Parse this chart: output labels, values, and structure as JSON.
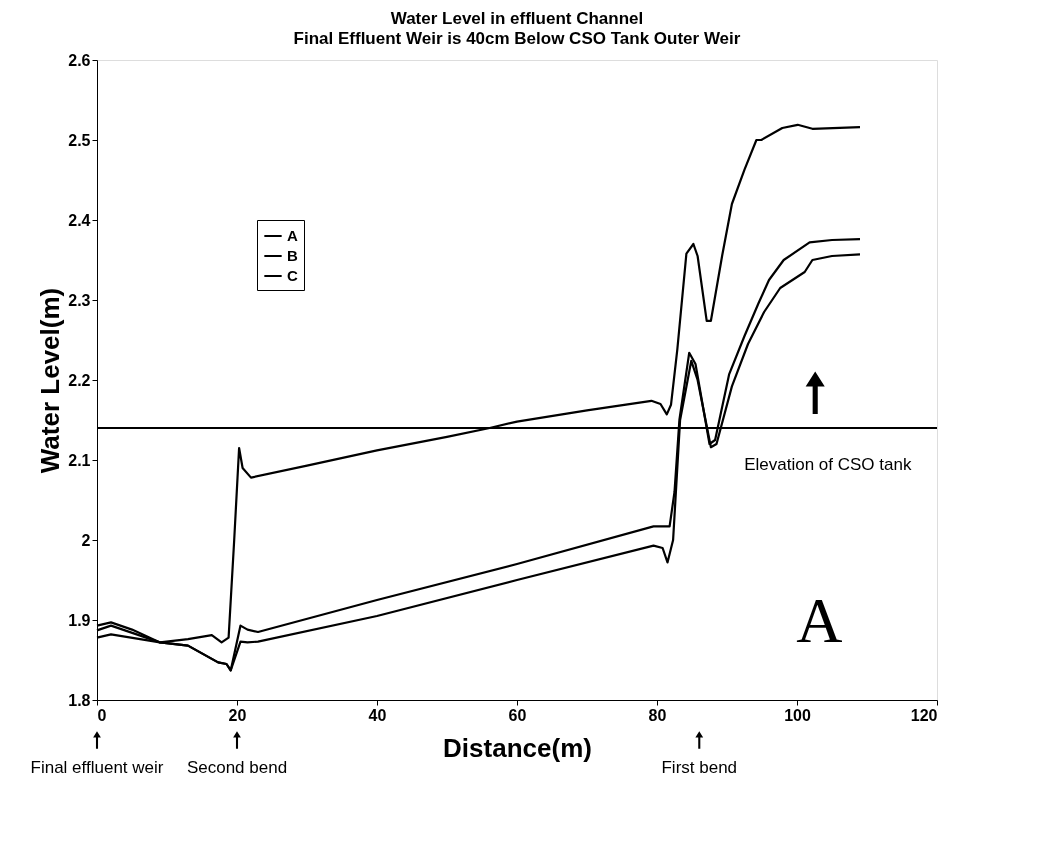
{
  "chart_data": {
    "type": "line",
    "title": "Water Level in effluent Channel",
    "subtitle": "Final Effluent Weir is 40cm Below CSO Tank Outer Weir",
    "xlabel": "Distance(m)",
    "ylabel": "Water Level(m)",
    "series": [
      {
        "name": "A",
        "color": "#000000",
        "x": [
          0,
          2,
          5,
          9,
          13,
          16.4,
          17.8,
          18.8,
          19.6,
          20.3,
          20.8,
          22,
          30,
          40,
          50,
          56.1,
          60,
          70,
          79.2,
          80.5,
          81.4,
          82.0,
          82.9,
          84.2,
          85.2,
          85.8,
          87.1,
          87.7,
          89.3,
          90.7,
          92.5,
          94.2,
          94.9,
          97.9,
          100.1,
          102.2,
          109
        ],
        "values": [
          1.893,
          1.897,
          1.888,
          1.872,
          1.876,
          1.881,
          1.872,
          1.878,
          2.0,
          2.115,
          2.09,
          2.078,
          2.093,
          2.112,
          2.129,
          2.14,
          2.148,
          2.162,
          2.174,
          2.17,
          2.157,
          2.169,
          2.238,
          2.358,
          2.37,
          2.355,
          2.274,
          2.274,
          2.355,
          2.42,
          2.463,
          2.5,
          2.5,
          2.515,
          2.519,
          2.514,
          2.516
        ]
      },
      {
        "name": "B",
        "color": "#000000",
        "x": [
          0,
          2,
          9,
          13,
          17.3,
          18.5,
          19.1,
          20.5,
          21.5,
          23,
          40,
          60,
          79.5,
          81.8,
          82.5,
          83.2,
          84.6,
          85.5,
          87.5,
          88.3,
          90.3,
          92.5,
          94.5,
          96,
          98.1,
          101.8,
          105,
          109
        ],
        "values": [
          1.887,
          1.893,
          1.872,
          1.868,
          1.847,
          1.845,
          1.837,
          1.893,
          1.888,
          1.885,
          1.925,
          1.97,
          2.017,
          2.017,
          2.06,
          2.15,
          2.234,
          2.22,
          2.12,
          2.125,
          2.207,
          2.255,
          2.296,
          2.325,
          2.35,
          2.372,
          2.375,
          2.376
        ]
      },
      {
        "name": "C",
        "color": "#000000",
        "x": [
          0,
          2,
          9,
          13,
          17.3,
          18.5,
          19.1,
          20.5,
          21.5,
          23,
          40,
          60,
          79.5,
          80.8,
          81.5,
          82.3,
          83.3,
          84.9,
          85.8,
          87.7,
          88.5,
          90.7,
          93,
          95.3,
          97.6,
          101.1,
          102.2,
          105,
          109
        ],
        "values": [
          1.878,
          1.882,
          1.872,
          1.868,
          1.847,
          1.845,
          1.837,
          1.873,
          1.872,
          1.873,
          1.905,
          1.95,
          1.993,
          1.99,
          1.972,
          2.0,
          2.15,
          2.224,
          2.2,
          2.116,
          2.12,
          2.192,
          2.245,
          2.285,
          2.315,
          2.335,
          2.35,
          2.355,
          2.357
        ]
      }
    ],
    "xlim": [
      0,
      120
    ],
    "xticks": [
      0,
      20,
      40,
      60,
      80,
      100,
      120
    ],
    "ylim": [
      1.8,
      2.6
    ],
    "yticks": [
      1.8,
      1.9,
      2,
      2.1,
      2.2,
      2.3,
      2.4,
      2.5,
      2.6
    ],
    "ref_lines": [
      {
        "axis": "y",
        "value": 2.14,
        "color": "#000000"
      }
    ],
    "annotations": [
      "Elevation of CSO tank",
      "Final effluent weir",
      "Second bend",
      "First bend",
      "A"
    ],
    "legend": "top left",
    "grid": false,
    "marker": "none",
    "line_style": "solid"
  }
}
